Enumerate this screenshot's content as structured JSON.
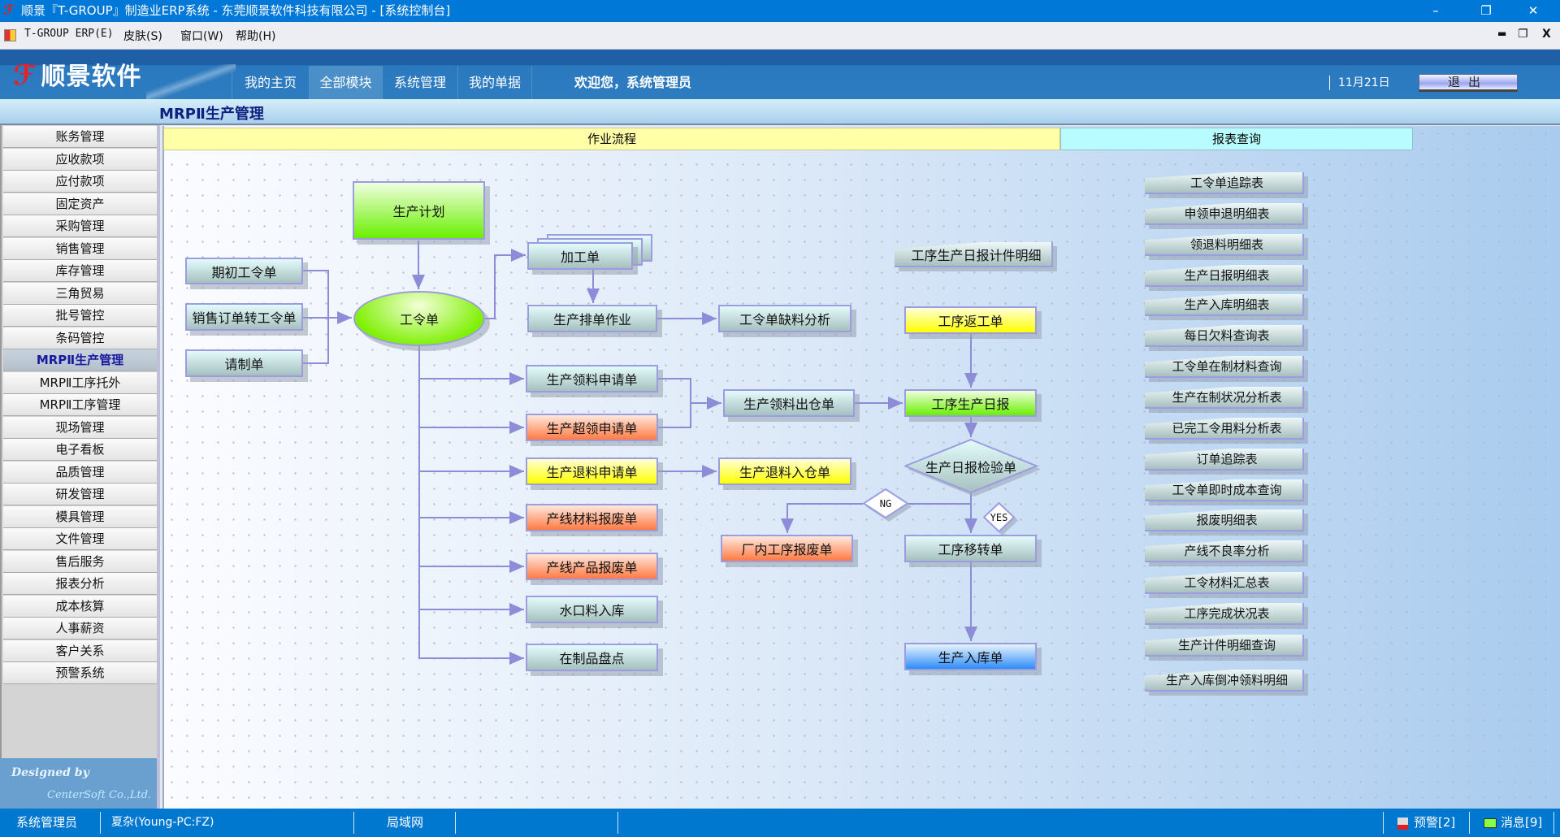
{
  "window": {
    "title": "顺景『T-GROUP』制造业ERP系统 - 东莞顺景软件科技有限公司 - [系统控制台]",
    "minimize": "–",
    "restore": "❐",
    "close": "✕"
  },
  "menubar": {
    "items": [
      "T-GROUP ERP(E)",
      "皮肤(S)",
      "窗口(W)",
      "帮助(H)"
    ],
    "mdi_min": "▬",
    "mdi_restore": "❐",
    "mdi_close": "X"
  },
  "header": {
    "brand": "顺景软件",
    "tabs": [
      {
        "label": "我的主页"
      },
      {
        "label": "全部模块",
        "active": true
      },
      {
        "label": "系统管理"
      },
      {
        "label": "我的单据"
      }
    ],
    "welcome": "欢迎您，系统管理员",
    "date": "11月21日",
    "logout": "退出"
  },
  "breadcrumb": "MRPⅡ生产管理",
  "sidebar": {
    "items": [
      "账务管理",
      "应收款项",
      "应付款项",
      "固定资产",
      "采购管理",
      "销售管理",
      "库存管理",
      "三角贸易",
      "批号管控",
      "条码管控",
      "MRPⅡ生产管理",
      "MRPⅡ工序托外",
      "MRPⅡ工序管理",
      "现场管理",
      "电子看板",
      "品质管理",
      "研发管理",
      "模具管理",
      "文件管理",
      "售后服务",
      "报表分析",
      "成本核算",
      "人事薪资",
      "客户关系",
      "预警系统"
    ],
    "active_index": 10,
    "designed_by": "Designed by",
    "company": "CenterSoft Co.,Ltd."
  },
  "panels": {
    "flow_header": "作业流程",
    "report_header": "报表查询"
  },
  "flowchart": {
    "nodes": [
      {
        "label": "生产计划",
        "style": "green"
      },
      {
        "label": "期初工令单",
        "style": "teal"
      },
      {
        "label": "销售订单转工令单",
        "style": "teal"
      },
      {
        "label": "请制单",
        "style": "teal"
      },
      {
        "label": "工令单",
        "style": "ellipse"
      },
      {
        "label": "加工单",
        "style": "teal"
      },
      {
        "label": "生产排单作业",
        "style": "teal"
      },
      {
        "label": "工令单缺料分析",
        "style": "teal"
      },
      {
        "label": "生产领料申请单",
        "style": "teal"
      },
      {
        "label": "生产超领申请单",
        "style": "orange"
      },
      {
        "label": "生产退料申请单",
        "style": "yellow"
      },
      {
        "label": "产线材料报废单",
        "style": "orange"
      },
      {
        "label": "产线产品报废单",
        "style": "orange"
      },
      {
        "label": "水口料入库",
        "style": "teal"
      },
      {
        "label": "在制品盘点",
        "style": "teal"
      },
      {
        "label": "生产领料出仓单",
        "style": "teal"
      },
      {
        "label": "生产退料入仓单",
        "style": "yellow"
      },
      {
        "label": "厂内工序报废单",
        "style": "orange"
      },
      {
        "label": "工序生产日报计件明细",
        "style": "doc"
      },
      {
        "label": "工序返工单",
        "style": "yellow"
      },
      {
        "label": "工序生产日报",
        "style": "green"
      },
      {
        "label": "生产日报检验单",
        "style": "diamond"
      },
      {
        "label": "NG",
        "style": "diamond-white"
      },
      {
        "label": "YES",
        "style": "diamond-white"
      },
      {
        "label": "工序移转单",
        "style": "teal"
      },
      {
        "label": "生产入库单",
        "style": "blue"
      }
    ]
  },
  "reports": [
    "工令单追踪表",
    "申领申退明细表",
    "领退料明细表",
    "生产日报明细表",
    "生产入库明细表",
    "每日欠料查询表",
    "工令单在制材料查询",
    "生产在制状况分析表",
    "已完工令用料分析表",
    "订单追踪表",
    "工令单即时成本查询",
    "报废明细表",
    "产线不良率分析",
    "工令材料汇总表",
    "工序完成状况表",
    "生产计件明细查询",
    "生产入库倒冲领料明细"
  ],
  "statusbar": {
    "user": "系统管理员",
    "host": "夏杂(Young-PC:FZ)",
    "network": "局域网",
    "alerts": "预警[2]",
    "messages": "消息[9]"
  },
  "colors": {
    "titlebar": "#0078d7",
    "banner": "#2e7cc0",
    "flow_header": "#ffffa8",
    "report_header": "#b8fcff",
    "connector": "#8c8cd8"
  }
}
